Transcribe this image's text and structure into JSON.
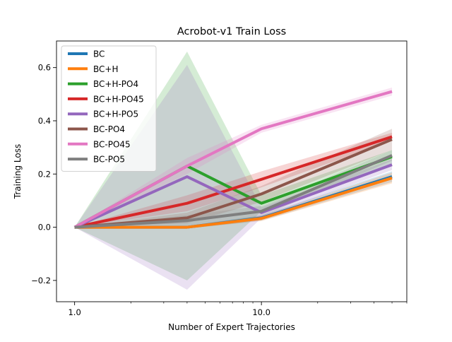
{
  "chart_data": {
    "type": "line",
    "title": "Acrobot-v1 Train Loss",
    "xlabel": "Number of Expert Trajectories",
    "ylabel": "Training Loss",
    "xscale": "log",
    "xlim": [
      0.8,
      60
    ],
    "ylim": [
      -0.28,
      0.7
    ],
    "grid": false,
    "legend_position": "top-left",
    "x": [
      1,
      4,
      10,
      50
    ],
    "x_ticks": [
      {
        "value": 1,
        "label": "1.0"
      },
      {
        "value": 10,
        "label": "10.0"
      }
    ],
    "y_ticks": [
      {
        "value": -0.2,
        "label": "−0.2"
      },
      {
        "value": 0.0,
        "label": "0.0"
      },
      {
        "value": 0.2,
        "label": "0.2"
      },
      {
        "value": 0.4,
        "label": "0.4"
      },
      {
        "value": 0.6,
        "label": "0.6"
      }
    ],
    "series": [
      {
        "name": "BC",
        "color": "#1f77b4",
        "values": [
          0.0,
          0.0,
          0.035,
          0.19
        ],
        "lower": [
          0.0,
          -0.005,
          0.025,
          0.17
        ],
        "upper": [
          0.0,
          0.005,
          0.045,
          0.21
        ]
      },
      {
        "name": "BC+H",
        "color": "#ff7f0e",
        "values": [
          0.0,
          0.0,
          0.033,
          0.185
        ],
        "lower": [
          0.0,
          -0.005,
          0.023,
          0.165
        ],
        "upper": [
          0.0,
          0.005,
          0.043,
          0.205
        ]
      },
      {
        "name": "BC+H-PO4",
        "color": "#2ca02c",
        "values": [
          0.0,
          0.23,
          0.09,
          0.265
        ],
        "lower": [
          0.0,
          -0.2,
          0.06,
          0.24
        ],
        "upper": [
          0.0,
          0.66,
          0.12,
          0.29
        ]
      },
      {
        "name": "BC+H-PO45",
        "color": "#d62728",
        "values": [
          0.0,
          0.09,
          0.18,
          0.34
        ],
        "lower": [
          0.0,
          0.06,
          0.15,
          0.325
        ],
        "upper": [
          0.0,
          0.12,
          0.21,
          0.355
        ]
      },
      {
        "name": "BC+H-PO5",
        "color": "#9467bd",
        "values": [
          0.0,
          0.19,
          0.055,
          0.235
        ],
        "lower": [
          0.0,
          -0.235,
          0.035,
          0.215
        ],
        "upper": [
          0.0,
          0.61,
          0.075,
          0.255
        ]
      },
      {
        "name": "BC-PO4",
        "color": "#8c564b",
        "values": [
          0.0,
          0.035,
          0.125,
          0.33
        ],
        "lower": [
          0.0,
          0.015,
          0.095,
          0.29
        ],
        "upper": [
          0.0,
          0.055,
          0.155,
          0.37
        ]
      },
      {
        "name": "BC-PO45",
        "color": "#e377c2",
        "values": [
          0.0,
          0.23,
          0.37,
          0.51
        ],
        "lower": [
          0.0,
          0.2,
          0.355,
          0.495
        ],
        "upper": [
          0.0,
          0.26,
          0.385,
          0.525
        ]
      },
      {
        "name": "BC-PO5",
        "color": "#7f7f7f",
        "values": [
          0.0,
          0.025,
          0.06,
          0.27
        ],
        "lower": [
          0.0,
          0.005,
          0.04,
          0.25
        ],
        "upper": [
          0.0,
          0.045,
          0.08,
          0.29
        ]
      }
    ]
  }
}
